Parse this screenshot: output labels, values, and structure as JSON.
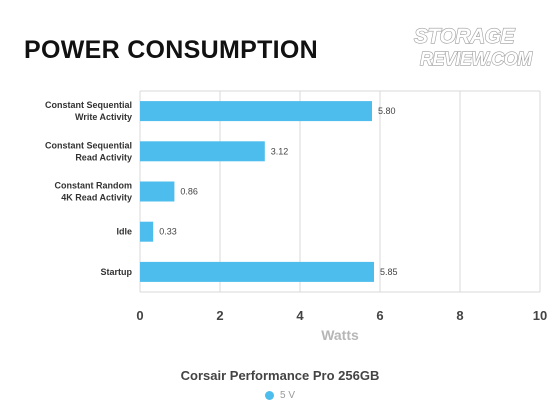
{
  "logo": {
    "line1": "STORAGE",
    "line2": "REVIEW.COM"
  },
  "colors": {
    "bar": "#4dbded",
    "grid": "#d9d9d9",
    "title": "#111111"
  },
  "chart_data": {
    "type": "bar",
    "orientation": "horizontal",
    "title": "POWER CONSUMPTION",
    "subtitle": "Corsair Performance Pro 256GB",
    "xlabel": "Watts",
    "ylabel": "",
    "xlim": [
      0,
      10
    ],
    "xticks": [
      0,
      2,
      4,
      6,
      8,
      10
    ],
    "grid": true,
    "legend_position": "bottom",
    "categories": [
      [
        "Constant Sequential",
        "Write Activity"
      ],
      [
        "Constant Sequential",
        "Read Activity"
      ],
      [
        "Constant Random",
        "4K Read Activity"
      ],
      [
        "Idle"
      ],
      [
        "Startup"
      ]
    ],
    "series": [
      {
        "name": "5 V",
        "color": "#4dbded",
        "values": [
          5.8,
          3.12,
          0.86,
          0.33,
          5.85
        ],
        "value_labels": [
          "5.80",
          "3.12",
          "0.86",
          "0.33",
          "5.85"
        ]
      }
    ]
  }
}
